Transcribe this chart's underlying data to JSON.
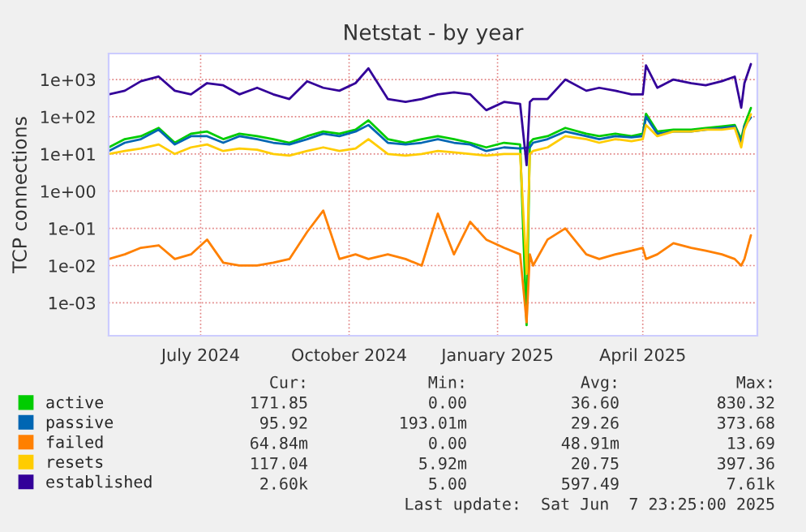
{
  "chart_data": {
    "type": "line",
    "title": "Netstat - by year",
    "ylabel": "TCP connections",
    "x": [
      "2024-05-05",
      "2024-05-15",
      "2024-05-25",
      "2024-06-05",
      "2024-06-15",
      "2024-06-25",
      "2024-07-05",
      "2024-07-15",
      "2024-07-25",
      "2024-08-05",
      "2024-08-15",
      "2024-08-25",
      "2024-09-05",
      "2024-09-15",
      "2024-09-25",
      "2024-10-05",
      "2024-10-13",
      "2024-10-25",
      "2024-11-05",
      "2024-11-15",
      "2024-11-25",
      "2024-12-05",
      "2024-12-15",
      "2024-12-25",
      "2025-01-05",
      "2025-01-15",
      "2025-01-19",
      "2025-01-21",
      "2025-01-23",
      "2025-02-01",
      "2025-02-12",
      "2025-02-25",
      "2025-03-05",
      "2025-03-15",
      "2025-03-25",
      "2025-04-01",
      "2025-04-03",
      "2025-04-10",
      "2025-04-20",
      "2025-05-01",
      "2025-05-10",
      "2025-05-20",
      "2025-05-28",
      "2025-06-01",
      "2025-06-03",
      "2025-06-07"
    ],
    "series": [
      {
        "name": "active",
        "color": "#00cc00",
        "values": [
          15,
          25,
          30,
          50,
          20,
          35,
          40,
          25,
          35,
          30,
          25,
          20,
          30,
          40,
          35,
          45,
          80,
          25,
          20,
          25,
          30,
          25,
          20,
          15,
          20,
          18,
          0.00025,
          20,
          25,
          30,
          50,
          35,
          30,
          35,
          30,
          35,
          120,
          40,
          45,
          45,
          50,
          55,
          60,
          25,
          60,
          172
        ]
      },
      {
        "name": "passive",
        "color": "#0066b3",
        "values": [
          12,
          20,
          25,
          45,
          18,
          30,
          30,
          20,
          30,
          25,
          20,
          18,
          25,
          35,
          30,
          40,
          60,
          20,
          18,
          20,
          25,
          20,
          18,
          12,
          15,
          14,
          null,
          15,
          20,
          25,
          40,
          30,
          25,
          30,
          28,
          30,
          100,
          35,
          40,
          40,
          45,
          50,
          55,
          20,
          55,
          96
        ]
      },
      {
        "name": "failed",
        "color": "#ff8000",
        "values": [
          0.015,
          0.02,
          0.03,
          0.035,
          0.015,
          0.02,
          0.05,
          0.012,
          0.01,
          0.01,
          0.012,
          0.015,
          0.08,
          0.3,
          0.015,
          0.02,
          0.015,
          0.02,
          0.015,
          0.01,
          0.25,
          0.02,
          0.15,
          0.05,
          0.03,
          0.02,
          0.0003,
          0.02,
          0.01,
          0.05,
          0.1,
          0.02,
          0.015,
          0.02,
          0.025,
          0.03,
          0.015,
          0.02,
          0.04,
          0.03,
          0.025,
          0.02,
          0.015,
          0.01,
          0.015,
          0.065
        ]
      },
      {
        "name": "resets",
        "color": "#ffcc00",
        "values": [
          10,
          12,
          14,
          18,
          10,
          15,
          18,
          12,
          14,
          13,
          10,
          9,
          12,
          15,
          12,
          14,
          25,
          10,
          9,
          10,
          12,
          11,
          10,
          9,
          10,
          10,
          0.006,
          10,
          12,
          15,
          30,
          25,
          20,
          25,
          22,
          25,
          60,
          30,
          40,
          40,
          45,
          45,
          50,
          15,
          45,
          117
        ]
      },
      {
        "name": "established",
        "color": "#330099",
        "values": [
          400,
          500,
          900,
          1200,
          500,
          400,
          800,
          700,
          400,
          600,
          400,
          300,
          900,
          600,
          500,
          800,
          2000,
          300,
          250,
          300,
          400,
          450,
          400,
          150,
          250,
          220,
          5,
          250,
          300,
          300,
          1000,
          500,
          600,
          500,
          400,
          400,
          2400,
          600,
          1000,
          800,
          700,
          900,
          1200,
          175,
          800,
          2600
        ]
      }
    ],
    "log": "y",
    "ylim": [
      0.00013,
      5000
    ],
    "yticks": [
      {
        "value": 0.001,
        "label": "1e-03"
      },
      {
        "value": 0.01,
        "label": "1e-02"
      },
      {
        "value": 0.1,
        "label": "1e-01"
      },
      {
        "value": 1,
        "label": "1e+00"
      },
      {
        "value": 10,
        "label": "1e+01"
      },
      {
        "value": 100,
        "label": "1e+02"
      },
      {
        "value": 1000,
        "label": "1e+03"
      }
    ],
    "xlim": [
      "2024-05-05",
      "2025-06-11"
    ],
    "xticks": [
      {
        "value": "2024-07-01",
        "label": "July 2024"
      },
      {
        "value": "2024-10-01",
        "label": "October 2024"
      },
      {
        "value": "2025-01-01",
        "label": "January 2025"
      },
      {
        "value": "2025-04-01",
        "label": "April 2025"
      }
    ],
    "grid": true,
    "legend": "bottom left",
    "annotations": [
      "Cur:",
      "Min:",
      "Avg:",
      "Max:",
      "171.85",
      "0.00",
      "36.60",
      "830.32",
      "95.92",
      "193.01m",
      "29.26",
      "373.68",
      "64.84m",
      "0.00",
      "48.91m",
      "13.69",
      "117.04",
      "5.92m",
      "20.75",
      "397.36",
      "2.60k",
      "5.00",
      "597.49",
      "7.61k",
      "Last update:  Sat Jun  7 23:25:00 2025"
    ]
  }
}
